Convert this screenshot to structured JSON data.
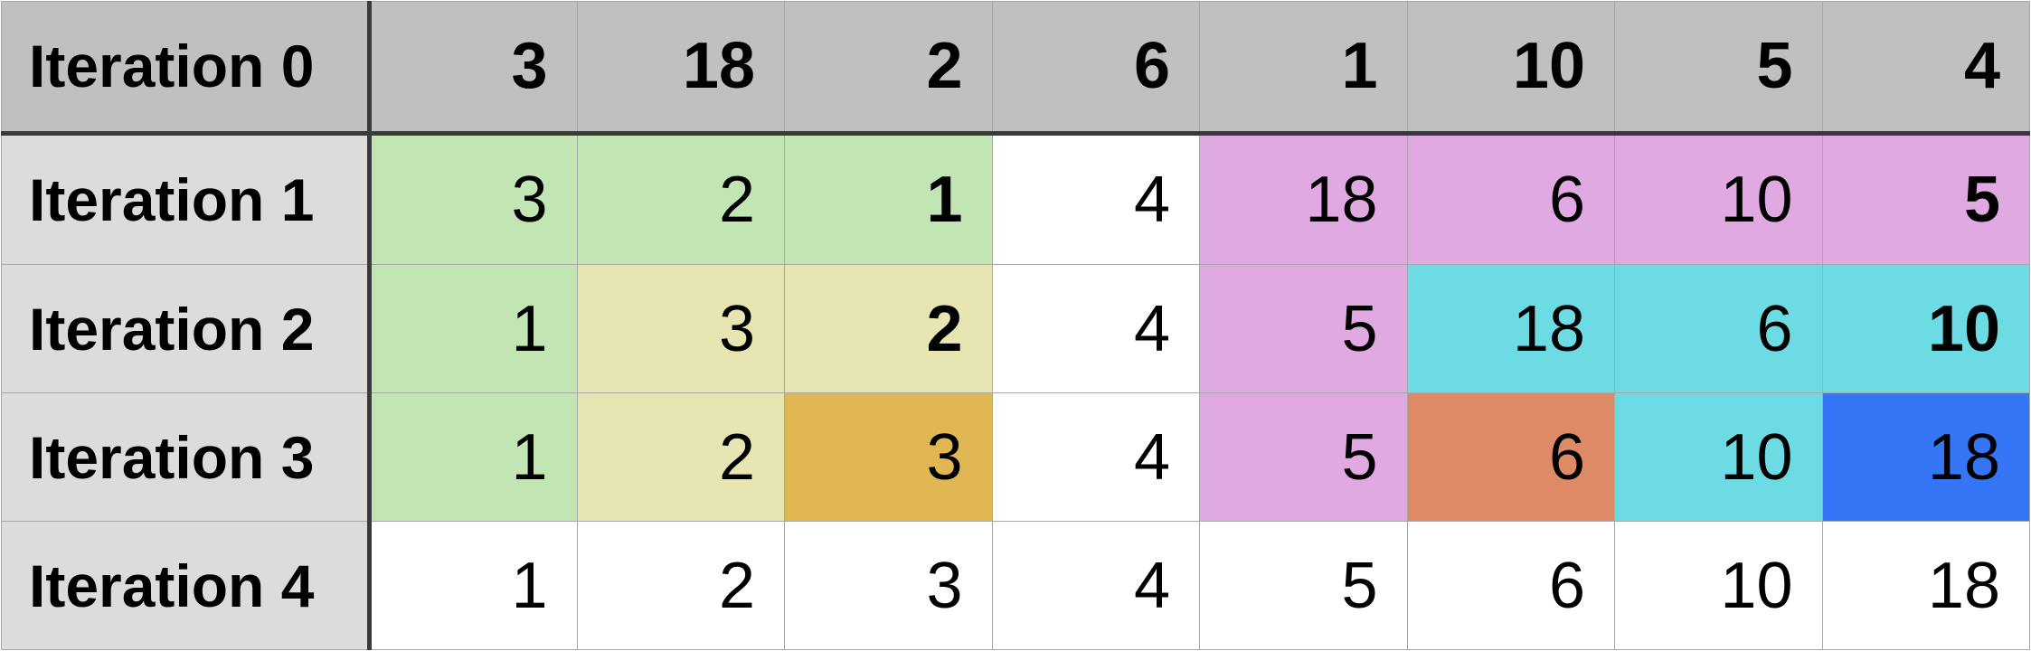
{
  "colors": {
    "header_bg": "#bfc0bf",
    "label_bg": "#dcdcdc",
    "white": "#ffffff",
    "green": "#c1e5b3",
    "pink": "#e0a9e1",
    "khaki": "#e7e6b3",
    "cyan": "#6ddbe3",
    "gold": "#e0b752",
    "salmon": "#dc8b66",
    "blue": "#3476f6"
  },
  "header": {
    "label": "Iteration 0",
    "values": [
      "3",
      "18",
      "2",
      "6",
      "1",
      "10",
      "5",
      "4"
    ]
  },
  "rows": [
    {
      "label": "Iteration 1",
      "cells": [
        {
          "value": "3",
          "color": "green",
          "bold": false
        },
        {
          "value": "2",
          "color": "green",
          "bold": false
        },
        {
          "value": "1",
          "color": "green",
          "bold": true
        },
        {
          "value": "4",
          "color": "white",
          "bold": false
        },
        {
          "value": "18",
          "color": "pink",
          "bold": false
        },
        {
          "value": "6",
          "color": "pink",
          "bold": false
        },
        {
          "value": "10",
          "color": "pink",
          "bold": false
        },
        {
          "value": "5",
          "color": "pink",
          "bold": true
        }
      ]
    },
    {
      "label": "Iteration 2",
      "cells": [
        {
          "value": "1",
          "color": "green",
          "bold": false
        },
        {
          "value": "3",
          "color": "khaki",
          "bold": false
        },
        {
          "value": "2",
          "color": "khaki",
          "bold": true
        },
        {
          "value": "4",
          "color": "white",
          "bold": false
        },
        {
          "value": "5",
          "color": "pink",
          "bold": false
        },
        {
          "value": "18",
          "color": "cyan",
          "bold": false
        },
        {
          "value": "6",
          "color": "cyan",
          "bold": false
        },
        {
          "value": "10",
          "color": "cyan",
          "bold": true
        }
      ]
    },
    {
      "label": "Iteration 3",
      "cells": [
        {
          "value": "1",
          "color": "green",
          "bold": false
        },
        {
          "value": "2",
          "color": "khaki",
          "bold": false
        },
        {
          "value": "3",
          "color": "gold",
          "bold": false
        },
        {
          "value": "4",
          "color": "white",
          "bold": false
        },
        {
          "value": "5",
          "color": "pink",
          "bold": false
        },
        {
          "value": "6",
          "color": "salmon",
          "bold": false
        },
        {
          "value": "10",
          "color": "cyan",
          "bold": false
        },
        {
          "value": "18",
          "color": "blue",
          "bold": false
        }
      ]
    },
    {
      "label": "Iteration 4",
      "cells": [
        {
          "value": "1",
          "color": "white",
          "bold": false
        },
        {
          "value": "2",
          "color": "white",
          "bold": false
        },
        {
          "value": "3",
          "color": "white",
          "bold": false
        },
        {
          "value": "4",
          "color": "white",
          "bold": false
        },
        {
          "value": "5",
          "color": "white",
          "bold": false
        },
        {
          "value": "6",
          "color": "white",
          "bold": false
        },
        {
          "value": "10",
          "color": "white",
          "bold": false
        },
        {
          "value": "18",
          "color": "white",
          "bold": false
        }
      ]
    }
  ]
}
